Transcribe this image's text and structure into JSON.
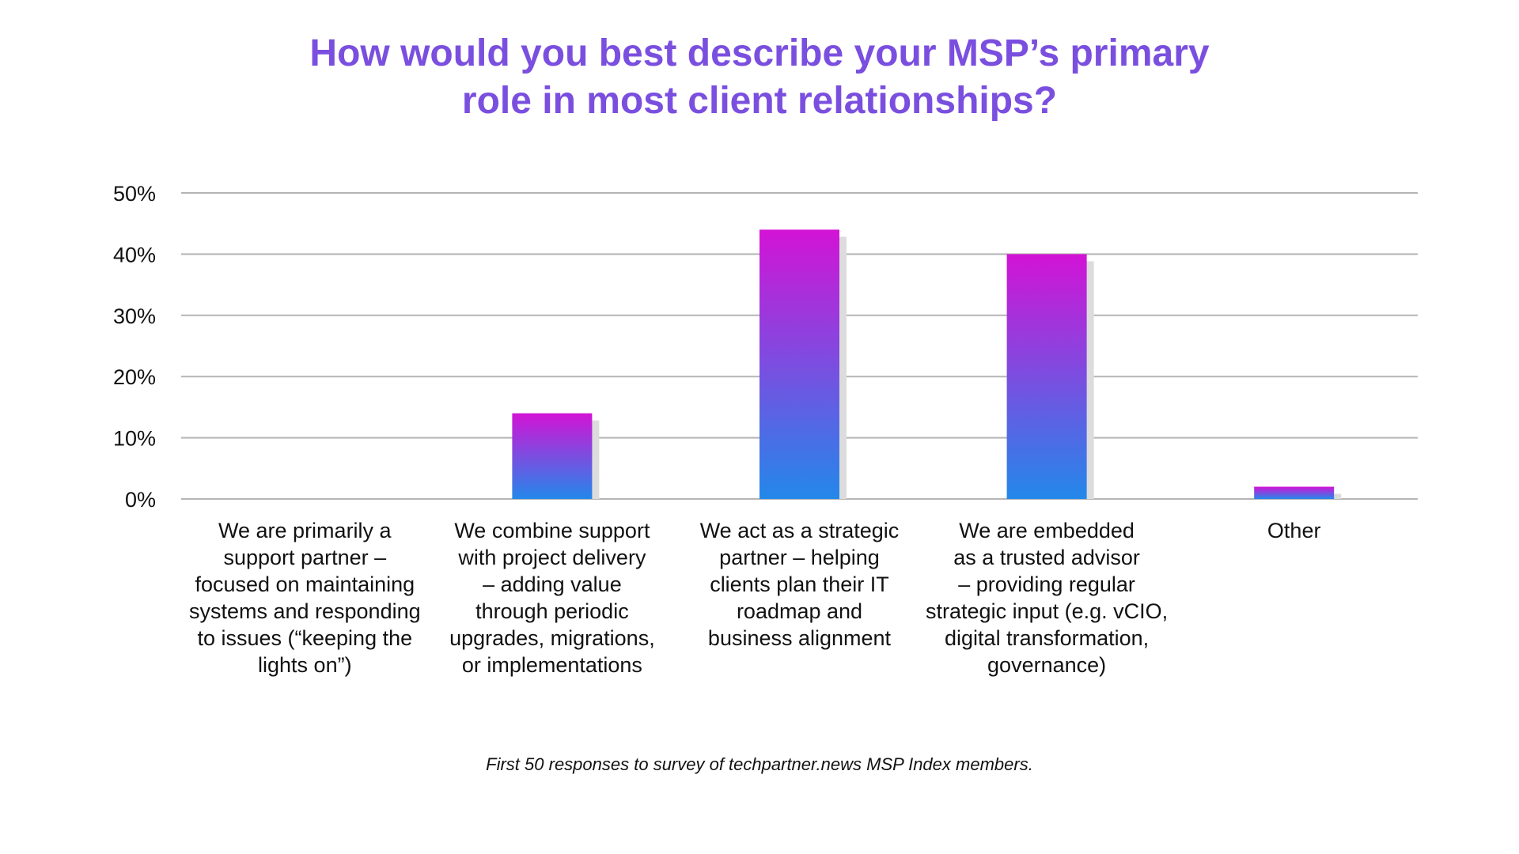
{
  "title": [
    "How would you best describe your MSP’s primary",
    "role in most client relationships?"
  ],
  "footnote": "First 50 responses to survey of techpartner.news MSP Index members.",
  "colors": {
    "title": "#7a4fdf",
    "bar_top": "#d313d6",
    "bar_bottom": "#2388ea",
    "grid": "#b5b5b5",
    "shadow": "#dcdcdc"
  },
  "chart_data": {
    "type": "bar",
    "title": "How would you best describe your MSP’s primary role in most client relationships?",
    "categories": [
      "We are primarily a support partner – focused on maintaining systems and responding to issues (“keeping the lights on”)",
      "We combine support with project delivery – adding value through periodic upgrades, migrations, or implementations",
      "We act as a strategic partner – helping clients plan their IT roadmap and business alignment",
      "We are embedded as a trusted advisor – providing regular strategic input (e.g. vCIO, digital transformation, governance)",
      "Other"
    ],
    "category_lines": [
      "We are primarily a\nsupport partner –\nfocused on maintaining\nsystems and responding\nto issues (“keeping the\nlights on”)",
      "We combine support\nwith project delivery\n– adding value\nthrough periodic\nupgrades, migrations,\nor implementations",
      "We act as a strategic\npartner – helping\nclients plan their IT\nroadmap and\nbusiness alignment",
      "We are embedded\nas a trusted advisor\n– providing regular\nstrategic input (e.g. vCIO,\ndigital transformation,\ngovernance)",
      "Other"
    ],
    "values": [
      0,
      14,
      44,
      40,
      2
    ],
    "unit": "%",
    "ylim": [
      0,
      50
    ],
    "yticks": [
      0,
      10,
      20,
      30,
      40,
      50
    ],
    "ytick_labels": [
      "0%",
      "10%",
      "20%",
      "30%",
      "40%",
      "50%"
    ],
    "xlabel": "",
    "ylabel": "",
    "grid": true,
    "legend": "none"
  }
}
